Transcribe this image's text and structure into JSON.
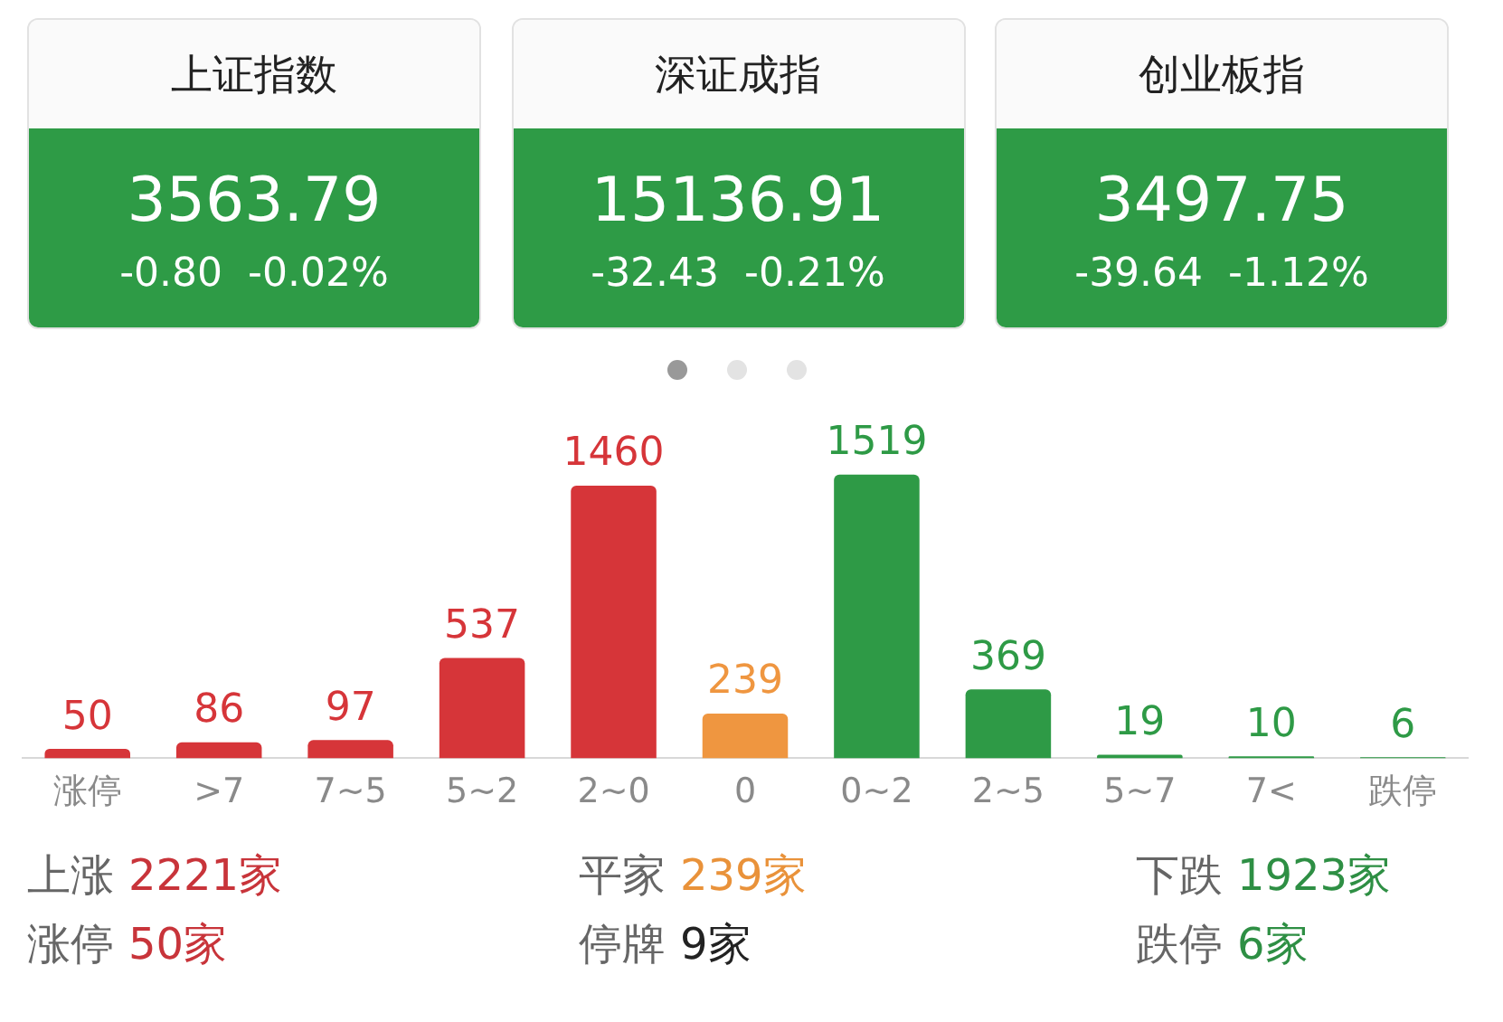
{
  "chart_data": [
    {
      "type": "other",
      "categories": [
        "上证指数",
        "深证成指",
        "创业板指"
      ],
      "series": [
        {
          "values": [
            3563.79,
            15136.91,
            3497.75
          ],
          "value_labels": [
            "3563.79",
            "15136.91",
            "3497.75"
          ]
        },
        {
          "values": [
            -0.8,
            -32.43,
            -39.64
          ],
          "value_labels": [
            "-0.80",
            "-32.43",
            "-39.64"
          ]
        },
        {
          "values": [
            -0.02,
            -0.21,
            -1.12
          ],
          "value_labels": [
            "-0.02%",
            "-0.21%",
            "-1.12%"
          ]
        }
      ]
    },
    {
      "type": "bar",
      "categories": [
        "涨停",
        ">7",
        "7~5",
        "5~2",
        "2~0",
        "0",
        "0~2",
        "2~5",
        "5~7",
        "7<",
        "跌停"
      ],
      "values": [
        50,
        86,
        97,
        537,
        1460,
        239,
        1519,
        369,
        19,
        10,
        6
      ],
      "colors": [
        "#d63539",
        "#d63539",
        "#d63539",
        "#d63539",
        "#d63539",
        "#ef9640",
        "#2e9a46",
        "#2e9a46",
        "#2e9a46",
        "#2e9a46",
        "#2e9a46"
      ],
      "data_labels": true,
      "grid": false,
      "legend": false,
      "tick_labels": "x"
    },
    {
      "type": "other",
      "categories": [
        "上涨",
        "平家",
        "下跌",
        "涨停",
        "停牌",
        "跌停"
      ],
      "values": [
        2221,
        239,
        1923,
        50,
        9,
        6
      ],
      "value_labels": [
        "2221家",
        "239家",
        "1923家",
        "50家",
        "9家",
        "6家"
      ],
      "colors": [
        "#c8343a",
        "#e9923a",
        "#2e8f44",
        "#c8343a",
        "#222222",
        "#2e8f44"
      ]
    }
  ]
}
